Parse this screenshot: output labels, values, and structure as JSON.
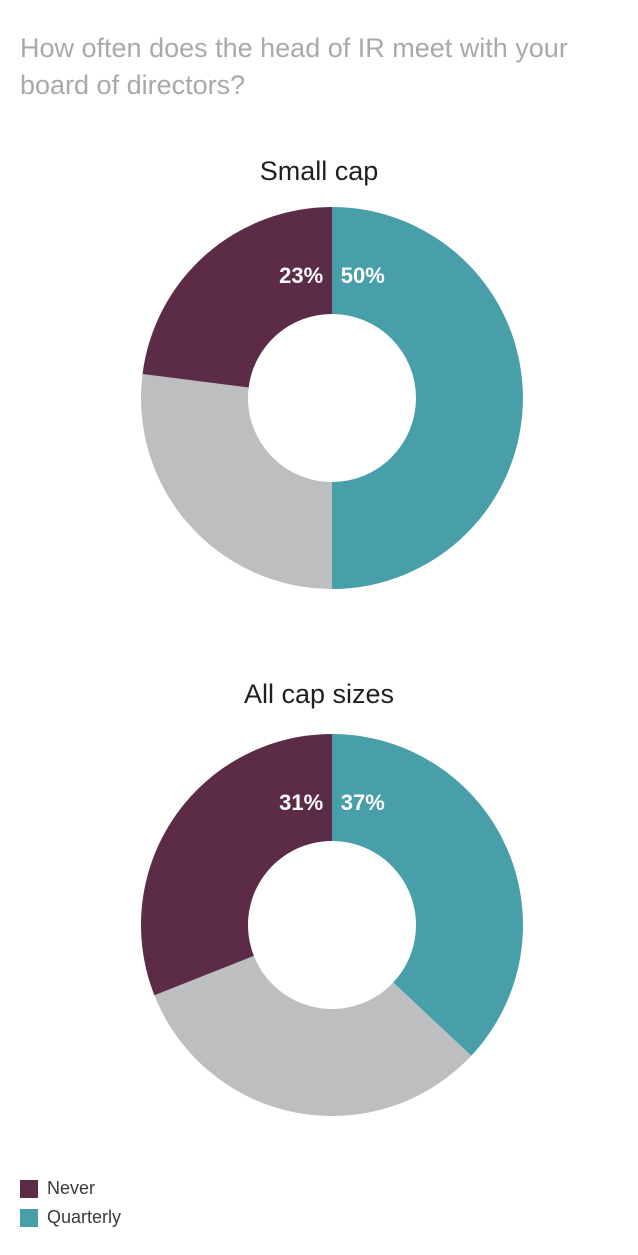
{
  "question": "How often does the head of IR meet with your board of directors?",
  "colors": {
    "never": "#5c2c47",
    "quarterly": "#489fa9",
    "other": "#bcbec0",
    "title": "#a7a9ac"
  },
  "legend": [
    {
      "label": "Never",
      "color": "#5c2c47"
    },
    {
      "label": "Quarterly",
      "color": "#489fa9"
    }
  ],
  "chart_data": [
    {
      "type": "pie",
      "title": "Small cap",
      "slices": [
        {
          "name": "Quarterly",
          "value": 50,
          "label": "50%",
          "color": "#489fa9"
        },
        {
          "name": "",
          "value": 27,
          "label": "",
          "color": "#bcbec0"
        },
        {
          "name": "Never",
          "value": 23,
          "label": "23%",
          "color": "#5c2c47"
        }
      ]
    },
    {
      "type": "pie",
      "title": "All cap sizes",
      "slices": [
        {
          "name": "Quarterly",
          "value": 37,
          "label": "37%",
          "color": "#489fa9"
        },
        {
          "name": "",
          "value": 32,
          "label": "",
          "color": "#bcbec0"
        },
        {
          "name": "Never",
          "value": 31,
          "label": "31%",
          "color": "#5c2c47"
        }
      ]
    }
  ]
}
